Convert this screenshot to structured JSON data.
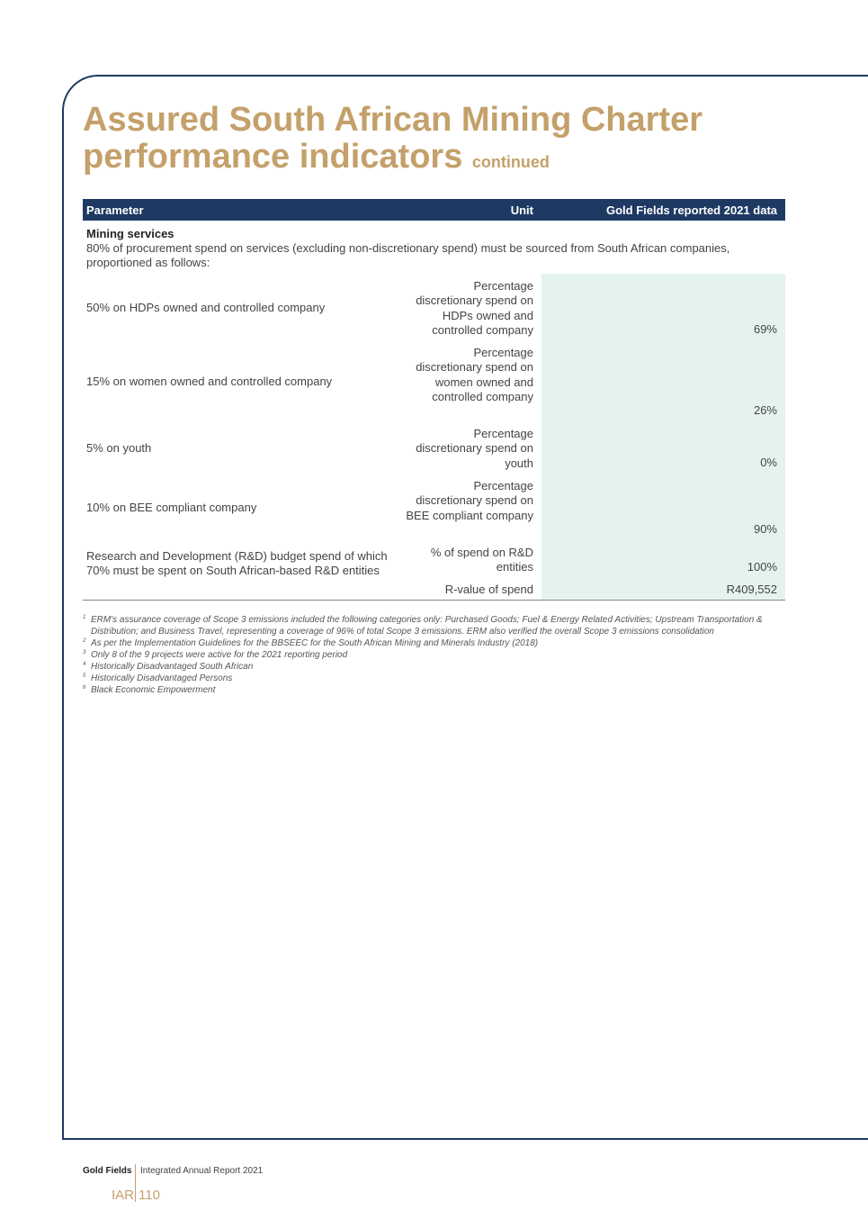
{
  "title": {
    "line1": "Assured South African Mining Charter",
    "line2": "performance indicators",
    "suffix": "continued"
  },
  "table": {
    "headers": {
      "parameter": "Parameter",
      "unit": "Unit",
      "data": "Gold Fields reported 2021 data"
    },
    "section": {
      "heading": "Mining services",
      "text": "80% of procurement spend on services (excluding non-discretionary spend) must be sourced from South African companies, proportioned as follows:"
    },
    "rows": [
      {
        "parameter": "50% on HDPs owned and controlled company",
        "unit": "Percentage discretionary spend on HDPs owned and controlled company",
        "value": "69%"
      },
      {
        "parameter": "15% on women owned and controlled company",
        "unit": "Percentage discretionary spend on women owned and controlled company",
        "value": "26%"
      },
      {
        "parameter": "5% on youth",
        "unit": "Percentage discretionary spend on youth",
        "value": "0%"
      },
      {
        "parameter": "10% on BEE compliant company",
        "unit": "Percentage discretionary spend on BEE compliant company",
        "value": "90%"
      },
      {
        "parameter": "Research and Development (R&D) budget spend of which 70% must be spent on South African-based R&D entities",
        "unit": "% of spend on R&D entities",
        "value": "100%"
      },
      {
        "parameter": "",
        "unit": "R-value of spend",
        "value": "R409,552"
      }
    ]
  },
  "footnotes": [
    {
      "n": "1",
      "text": "ERM's assurance coverage of Scope 3 emissions included the following categories only: Purchased Goods; Fuel & Energy Related Activities; Upstream Transportation & Distribution; and Business Travel, representing a coverage of 96% of total Scope 3 emissions. ERM also verified the overall Scope 3 emissions consolidation"
    },
    {
      "n": "2",
      "text": "As per the Implementation Guidelines for the BBSEEC for the South African Mining and Minerals Industry (2018)"
    },
    {
      "n": "3",
      "text": "Only 8 of the 9 projects were active for the 2021 reporting period"
    },
    {
      "n": "4",
      "text": "Historically Disadvantaged South African"
    },
    {
      "n": "5",
      "text": "Historically Disadvantaged Persons"
    },
    {
      "n": "6",
      "text": "Black Economic Empowerment"
    }
  ],
  "footer": {
    "company": "Gold Fields",
    "report": "Integrated Annual Report 2021",
    "section": "IAR",
    "page": "110"
  },
  "colors": {
    "gold": "#c4a06a",
    "navy": "#1e3a63",
    "shade": "#e5f3ef"
  }
}
